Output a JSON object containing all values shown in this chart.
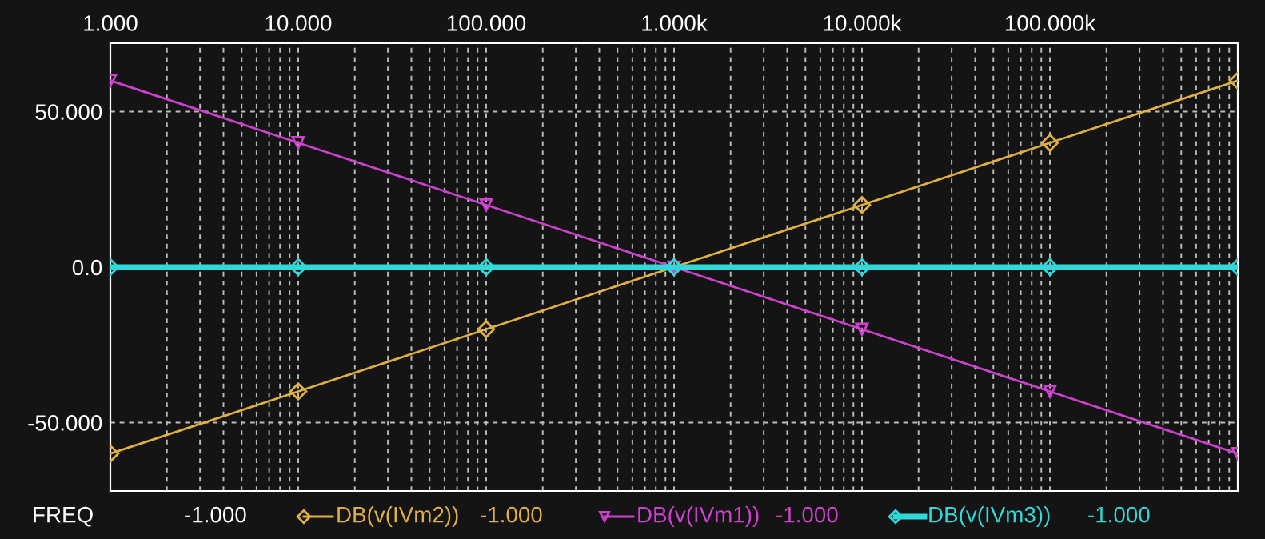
{
  "chart_data": {
    "type": "line",
    "xlabel": "FREQ",
    "log": "x",
    "x": [
      1,
      10,
      100,
      1000,
      10000,
      100000,
      1000000
    ],
    "series": [
      {
        "name": "DB(v(IVm2))",
        "color": "#e0b040",
        "marker": "diamond",
        "values": [
          -60,
          -40,
          -20,
          0,
          20,
          40,
          60
        ]
      },
      {
        "name": "DB(v(IVm1))",
        "color": "#d040d0",
        "marker": "triangle",
        "values": [
          60,
          40,
          20,
          0,
          -20,
          -40,
          -60
        ]
      },
      {
        "name": "DB(v(IVm3))",
        "color": "#30d8d8",
        "marker": "diamond",
        "values": [
          0,
          0,
          0,
          0,
          0,
          0,
          0
        ]
      }
    ],
    "xlim": [
      1,
      1000000
    ],
    "ylim": [
      -72,
      72
    ],
    "xticks": [
      {
        "value": 1,
        "label": "1.000"
      },
      {
        "value": 10,
        "label": "10.000"
      },
      {
        "value": 100,
        "label": "100.000"
      },
      {
        "value": 1000,
        "label": "1.000k"
      },
      {
        "value": 10000,
        "label": "10.000k"
      },
      {
        "value": 100000,
        "label": "100.000k"
      }
    ],
    "yticks": [
      {
        "value": -50,
        "label": "-50.000"
      },
      {
        "value": 0,
        "label": "0.0"
      },
      {
        "value": 50,
        "label": "50.000"
      }
    ],
    "grid": true,
    "legend": "bottom",
    "line_style": "solid",
    "annotations": [
      "-1.000",
      "-1.000",
      "-1.000",
      "-1.000"
    ]
  }
}
